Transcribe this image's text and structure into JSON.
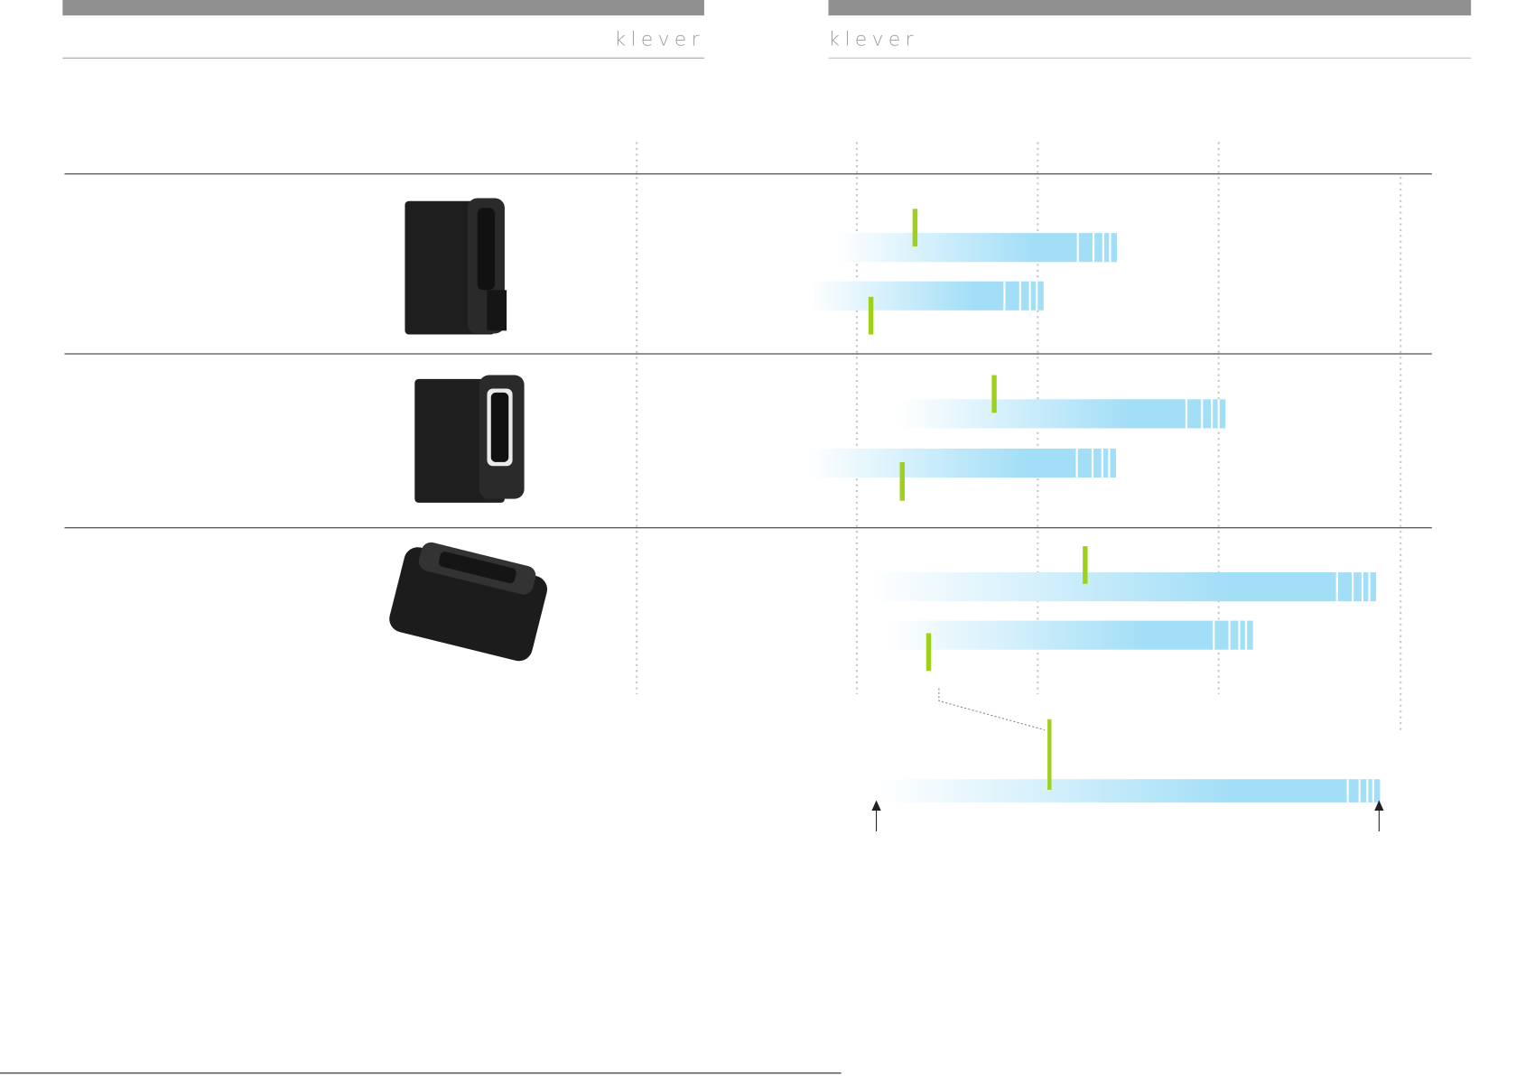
{
  "header": {
    "logo_left": "klever",
    "logo_right": "klever"
  }
}
